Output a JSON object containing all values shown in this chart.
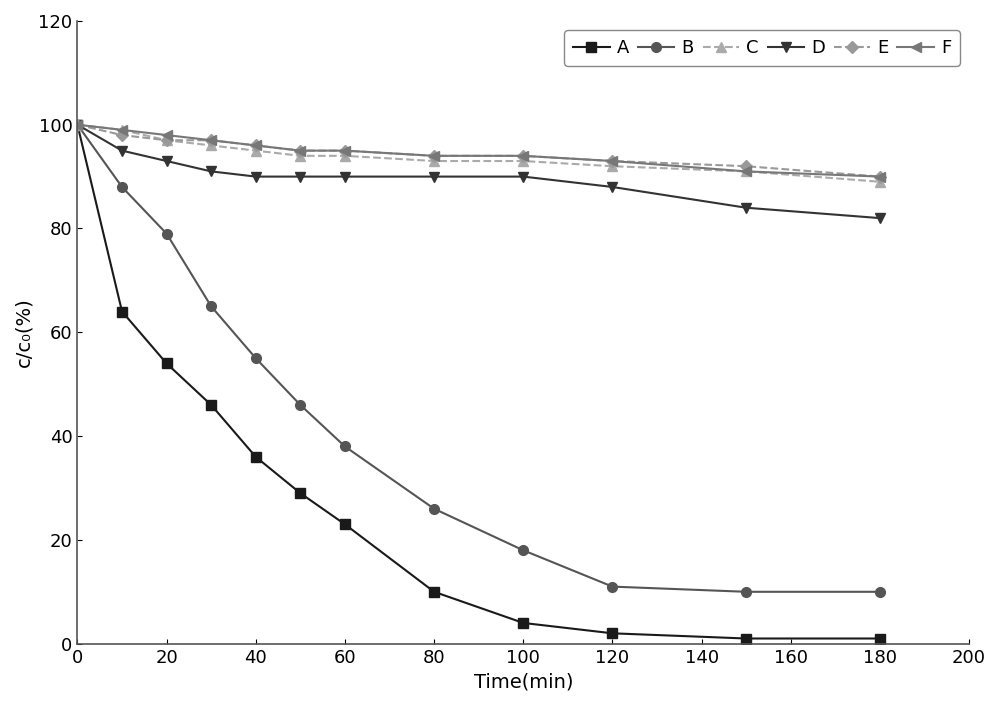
{
  "series": {
    "A": {
      "x": [
        0,
        10,
        20,
        30,
        40,
        50,
        60,
        80,
        100,
        120,
        150,
        180
      ],
      "y": [
        100,
        64,
        54,
        46,
        36,
        29,
        23,
        10,
        4,
        2,
        1,
        1
      ],
      "color": "#1a1a1a",
      "marker": "s",
      "linestyle": "-",
      "markersize": 7
    },
    "B": {
      "x": [
        0,
        10,
        20,
        30,
        40,
        50,
        60,
        80,
        100,
        120,
        150,
        180
      ],
      "y": [
        100,
        88,
        79,
        65,
        55,
        46,
        38,
        26,
        18,
        11,
        10,
        10
      ],
      "color": "#555555",
      "marker": "o",
      "linestyle": "-",
      "markersize": 7
    },
    "C": {
      "x": [
        0,
        10,
        20,
        30,
        40,
        50,
        60,
        80,
        100,
        120,
        150,
        180
      ],
      "y": [
        100,
        99,
        97,
        96,
        95,
        94,
        94,
        93,
        93,
        92,
        91,
        89
      ],
      "color": "#aaaaaa",
      "marker": "^",
      "linestyle": "--",
      "markersize": 7
    },
    "D": {
      "x": [
        0,
        10,
        20,
        30,
        40,
        50,
        60,
        80,
        100,
        120,
        150,
        180
      ],
      "y": [
        100,
        95,
        93,
        91,
        90,
        90,
        90,
        90,
        90,
        88,
        84,
        82
      ],
      "color": "#333333",
      "marker": "v",
      "linestyle": "-",
      "markersize": 7
    },
    "E": {
      "x": [
        0,
        10,
        20,
        30,
        40,
        50,
        60,
        80,
        100,
        120,
        150,
        180
      ],
      "y": [
        100,
        98,
        97,
        97,
        96,
        95,
        95,
        94,
        94,
        93,
        92,
        90
      ],
      "color": "#999999",
      "marker": "D",
      "linestyle": "--",
      "markersize": 6
    },
    "F": {
      "x": [
        0,
        10,
        20,
        30,
        40,
        50,
        60,
        80,
        100,
        120,
        150,
        180
      ],
      "y": [
        100,
        99,
        98,
        97,
        96,
        95,
        95,
        94,
        94,
        93,
        91,
        90
      ],
      "color": "#777777",
      "marker": "<",
      "linestyle": "-",
      "markersize": 7
    }
  },
  "xlabel": "Time(min)",
  "ylabel": "c/c₀(%)",
  "xlim": [
    0,
    200
  ],
  "ylim": [
    0,
    120
  ],
  "xticks": [
    0,
    20,
    40,
    60,
    80,
    100,
    120,
    140,
    160,
    180,
    200
  ],
  "yticks": [
    0,
    20,
    40,
    60,
    80,
    100,
    120
  ],
  "legend_order": [
    "A",
    "B",
    "C",
    "D",
    "E",
    "F"
  ],
  "fig_facecolor": "#ffffff",
  "ax_facecolor": "#ffffff",
  "axis_fontsize": 14,
  "tick_fontsize": 13,
  "legend_fontsize": 13,
  "linewidth": 1.5
}
